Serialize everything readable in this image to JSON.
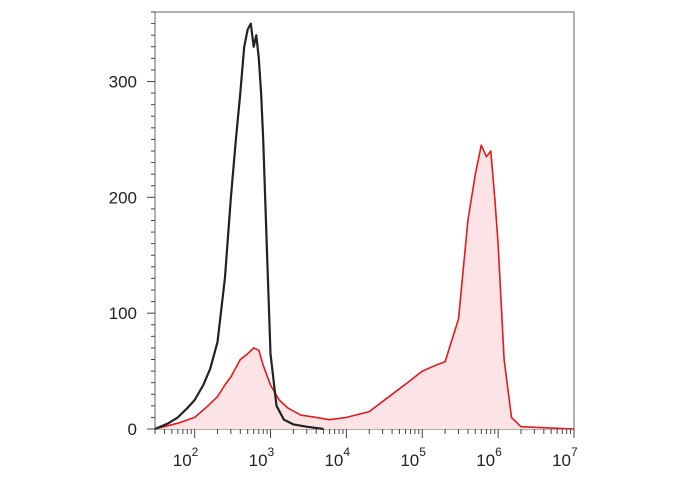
{
  "chart_data": {
    "type": "area",
    "title": "",
    "xlabel": "",
    "ylabel": "",
    "x_scale": "log",
    "xlim": [
      30,
      10000000
    ],
    "ylim": [
      0,
      360
    ],
    "x_ticks": [
      {
        "base": "10",
        "exp": "2",
        "value": 100
      },
      {
        "base": "10",
        "exp": "3",
        "value": 1000
      },
      {
        "base": "10",
        "exp": "4",
        "value": 10000
      },
      {
        "base": "10",
        "exp": "5",
        "value": 100000
      },
      {
        "base": "10",
        "exp": "6",
        "value": 1000000
      },
      {
        "base": "10",
        "exp": "7",
        "value": 10000000
      }
    ],
    "y_ticks": [
      {
        "label": "0",
        "value": 0
      },
      {
        "label": "100",
        "value": 100
      },
      {
        "label": "200",
        "value": 200
      },
      {
        "label": "300",
        "value": 300
      }
    ],
    "grid": false,
    "legend": "none",
    "series": [
      {
        "color": "#222222",
        "fill": "none",
        "x": [
          30,
          45,
          60,
          80,
          100,
          130,
          160,
          200,
          250,
          300,
          350,
          400,
          450,
          500,
          550,
          600,
          650,
          700,
          750,
          800,
          900,
          1000,
          1200,
          1500,
          2000,
          3000,
          5000
        ],
        "y": [
          0,
          5,
          10,
          18,
          25,
          38,
          52,
          75,
          130,
          200,
          250,
          290,
          330,
          345,
          350,
          330,
          340,
          320,
          290,
          250,
          150,
          65,
          20,
          8,
          4,
          2,
          0
        ]
      },
      {
        "color": "#e31a1c",
        "fill": "#fce4e6",
        "x": [
          30,
          60,
          100,
          150,
          200,
          250,
          300,
          400,
          500,
          600,
          700,
          800,
          1000,
          1300,
          1700,
          2500,
          4000,
          6000,
          10000,
          20000,
          40000,
          70000,
          100000,
          150000,
          200000,
          300000,
          400000,
          500000,
          600000,
          700000,
          800000,
          900000,
          1000000,
          1200000,
          1500000,
          2000000,
          10000000
        ],
        "y": [
          0,
          5,
          10,
          20,
          28,
          38,
          45,
          60,
          65,
          70,
          68,
          55,
          38,
          25,
          18,
          12,
          10,
          8,
          10,
          15,
          30,
          42,
          50,
          55,
          58,
          95,
          180,
          220,
          245,
          235,
          240,
          200,
          160,
          60,
          10,
          2,
          0
        ]
      }
    ]
  }
}
